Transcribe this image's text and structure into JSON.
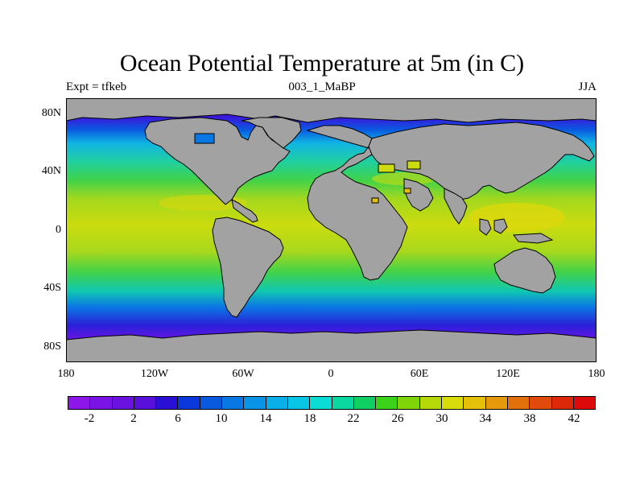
{
  "header": {
    "title": "Ocean Potential Temperature at 5m (in C)",
    "left": "Expt = tfkeb",
    "center": "003_1_MaBP",
    "right": "JJA"
  },
  "axes": {
    "lat_labels": [
      "80N",
      "40N",
      "0",
      "40S",
      "80S"
    ],
    "lon_labels": [
      "180",
      "120W",
      "60W",
      "0",
      "60E",
      "120E",
      "180"
    ]
  },
  "colorbar": {
    "colors": [
      "#8d17e8",
      "#7a14e6",
      "#6b12e0",
      "#5a10db",
      "#2a10d4",
      "#0a38dc",
      "#0a5ae0",
      "#0a78e4",
      "#0a94e8",
      "#0aaee8",
      "#0ac6e6",
      "#0adcd6",
      "#0ad8a0",
      "#10d064",
      "#3cd21a",
      "#80d40a",
      "#b6d90a",
      "#d8dc0a",
      "#e4c00a",
      "#e49a0a",
      "#e2700a",
      "#e04a0a",
      "#de280a",
      "#dc0a0a"
    ],
    "labels": [
      "-2",
      "2",
      "6",
      "10",
      "14",
      "18",
      "22",
      "26",
      "30",
      "34",
      "38",
      "42"
    ]
  },
  "legend_colors": {
    "land": "#a2a2a2",
    "polar": "#6e14e4",
    "cold": "#1a3fe0",
    "cool": "#10b4e4",
    "mild": "#20d0a0",
    "temperate": "#40d24a",
    "warm": "#a2d81e",
    "tropical": "#ccdc0e",
    "hot": "#dcd80c"
  }
}
